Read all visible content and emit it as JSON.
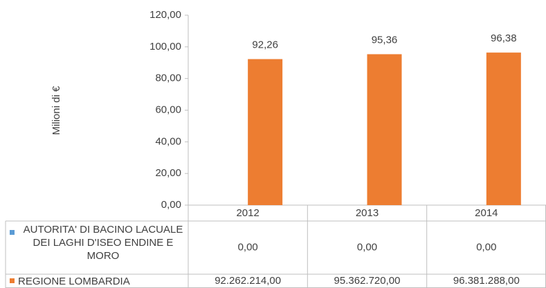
{
  "chart_data": {
    "type": "bar",
    "y_label": "Milioni di €",
    "categories": [
      "2012",
      "2013",
      "2014"
    ],
    "series": [
      {
        "name": "AUTORITA' DI BACINO LACUALE DEI LAGHI D'ISEO ENDINE E MORO",
        "color": "#5b9bd5",
        "values": [
          0,
          0,
          0
        ],
        "table_labels": [
          "0,00",
          "0,00",
          "0,00"
        ]
      },
      {
        "name": "REGIONE LOMBARDIA",
        "color": "#ed7d31",
        "values": [
          92.262214,
          95.36272,
          96.381288
        ],
        "value_labels": [
          "92,26",
          "95,36",
          "96,38"
        ],
        "table_labels": [
          "92.262.214,00",
          "95.362.720,00",
          "96.381.288,00"
        ]
      }
    ],
    "ylim": [
      0,
      120
    ],
    "yticks": [
      {
        "value": 0,
        "label": "0,00"
      },
      {
        "value": 20,
        "label": "20,00"
      },
      {
        "value": 40,
        "label": "40,00"
      },
      {
        "value": 60,
        "label": "60,00"
      },
      {
        "value": 80,
        "label": "80,00"
      },
      {
        "value": 100,
        "label": "100,00"
      },
      {
        "value": 120,
        "label": "120,00"
      }
    ],
    "grid": false
  }
}
